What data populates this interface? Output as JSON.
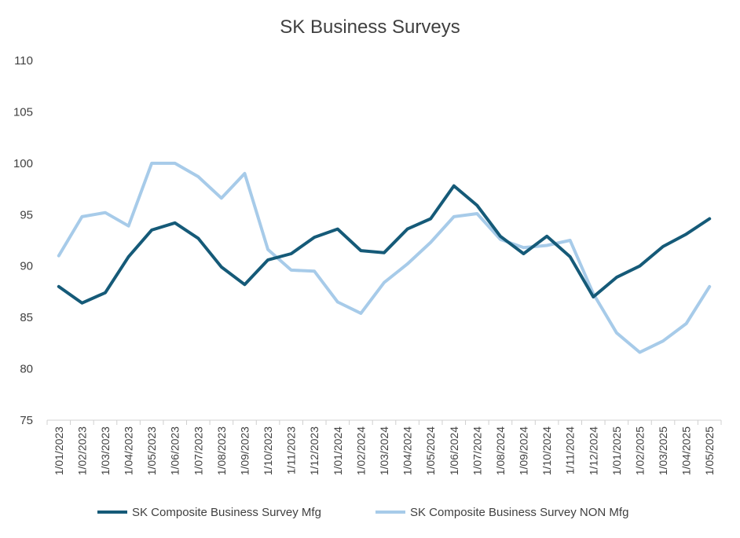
{
  "chart_data": {
    "type": "line",
    "title": "SK Business Surveys",
    "xlabel": "",
    "ylabel": "",
    "ylim": [
      75,
      110
    ],
    "yticks": [
      75,
      80,
      85,
      90,
      95,
      100,
      105,
      110
    ],
    "grid": false,
    "legend_position": "bottom",
    "categories": [
      "1/01/2023",
      "1/02/2023",
      "1/03/2023",
      "1/04/2023",
      "1/05/2023",
      "1/06/2023",
      "1/07/2023",
      "1/08/2023",
      "1/09/2023",
      "1/10/2023",
      "1/11/2023",
      "1/12/2023",
      "1/01/2024",
      "1/02/2024",
      "1/03/2024",
      "1/04/2024",
      "1/05/2024",
      "1/06/2024",
      "1/07/2024",
      "1/08/2024",
      "1/09/2024",
      "1/10/2024",
      "1/11/2024",
      "1/12/2024",
      "1/01/2025",
      "1/02/2025",
      "1/03/2025",
      "1/04/2025",
      "1/05/2025"
    ],
    "series": [
      {
        "name": "SK Composite Business Survey Mfg",
        "color": "#155a78",
        "values": [
          88.0,
          86.4,
          87.4,
          90.9,
          93.5,
          94.2,
          92.7,
          89.9,
          88.2,
          90.6,
          91.2,
          92.8,
          93.6,
          91.5,
          91.3,
          93.6,
          94.6,
          97.8,
          95.9,
          92.9,
          91.2,
          92.9,
          90.9,
          87.0,
          88.9,
          90.0,
          91.9,
          93.1,
          94.6
        ]
      },
      {
        "name": "SK Composite Business Survey NON Mfg",
        "color": "#a7cbe9",
        "values": [
          91.0,
          94.8,
          95.2,
          93.9,
          100.0,
          100.0,
          98.7,
          96.6,
          99.0,
          91.6,
          89.6,
          89.5,
          86.5,
          85.4,
          88.4,
          90.2,
          92.3,
          94.8,
          95.1,
          92.6,
          91.8,
          92.0,
          92.5,
          87.3,
          83.5,
          81.6,
          82.7,
          84.4,
          88.0
        ]
      }
    ]
  }
}
